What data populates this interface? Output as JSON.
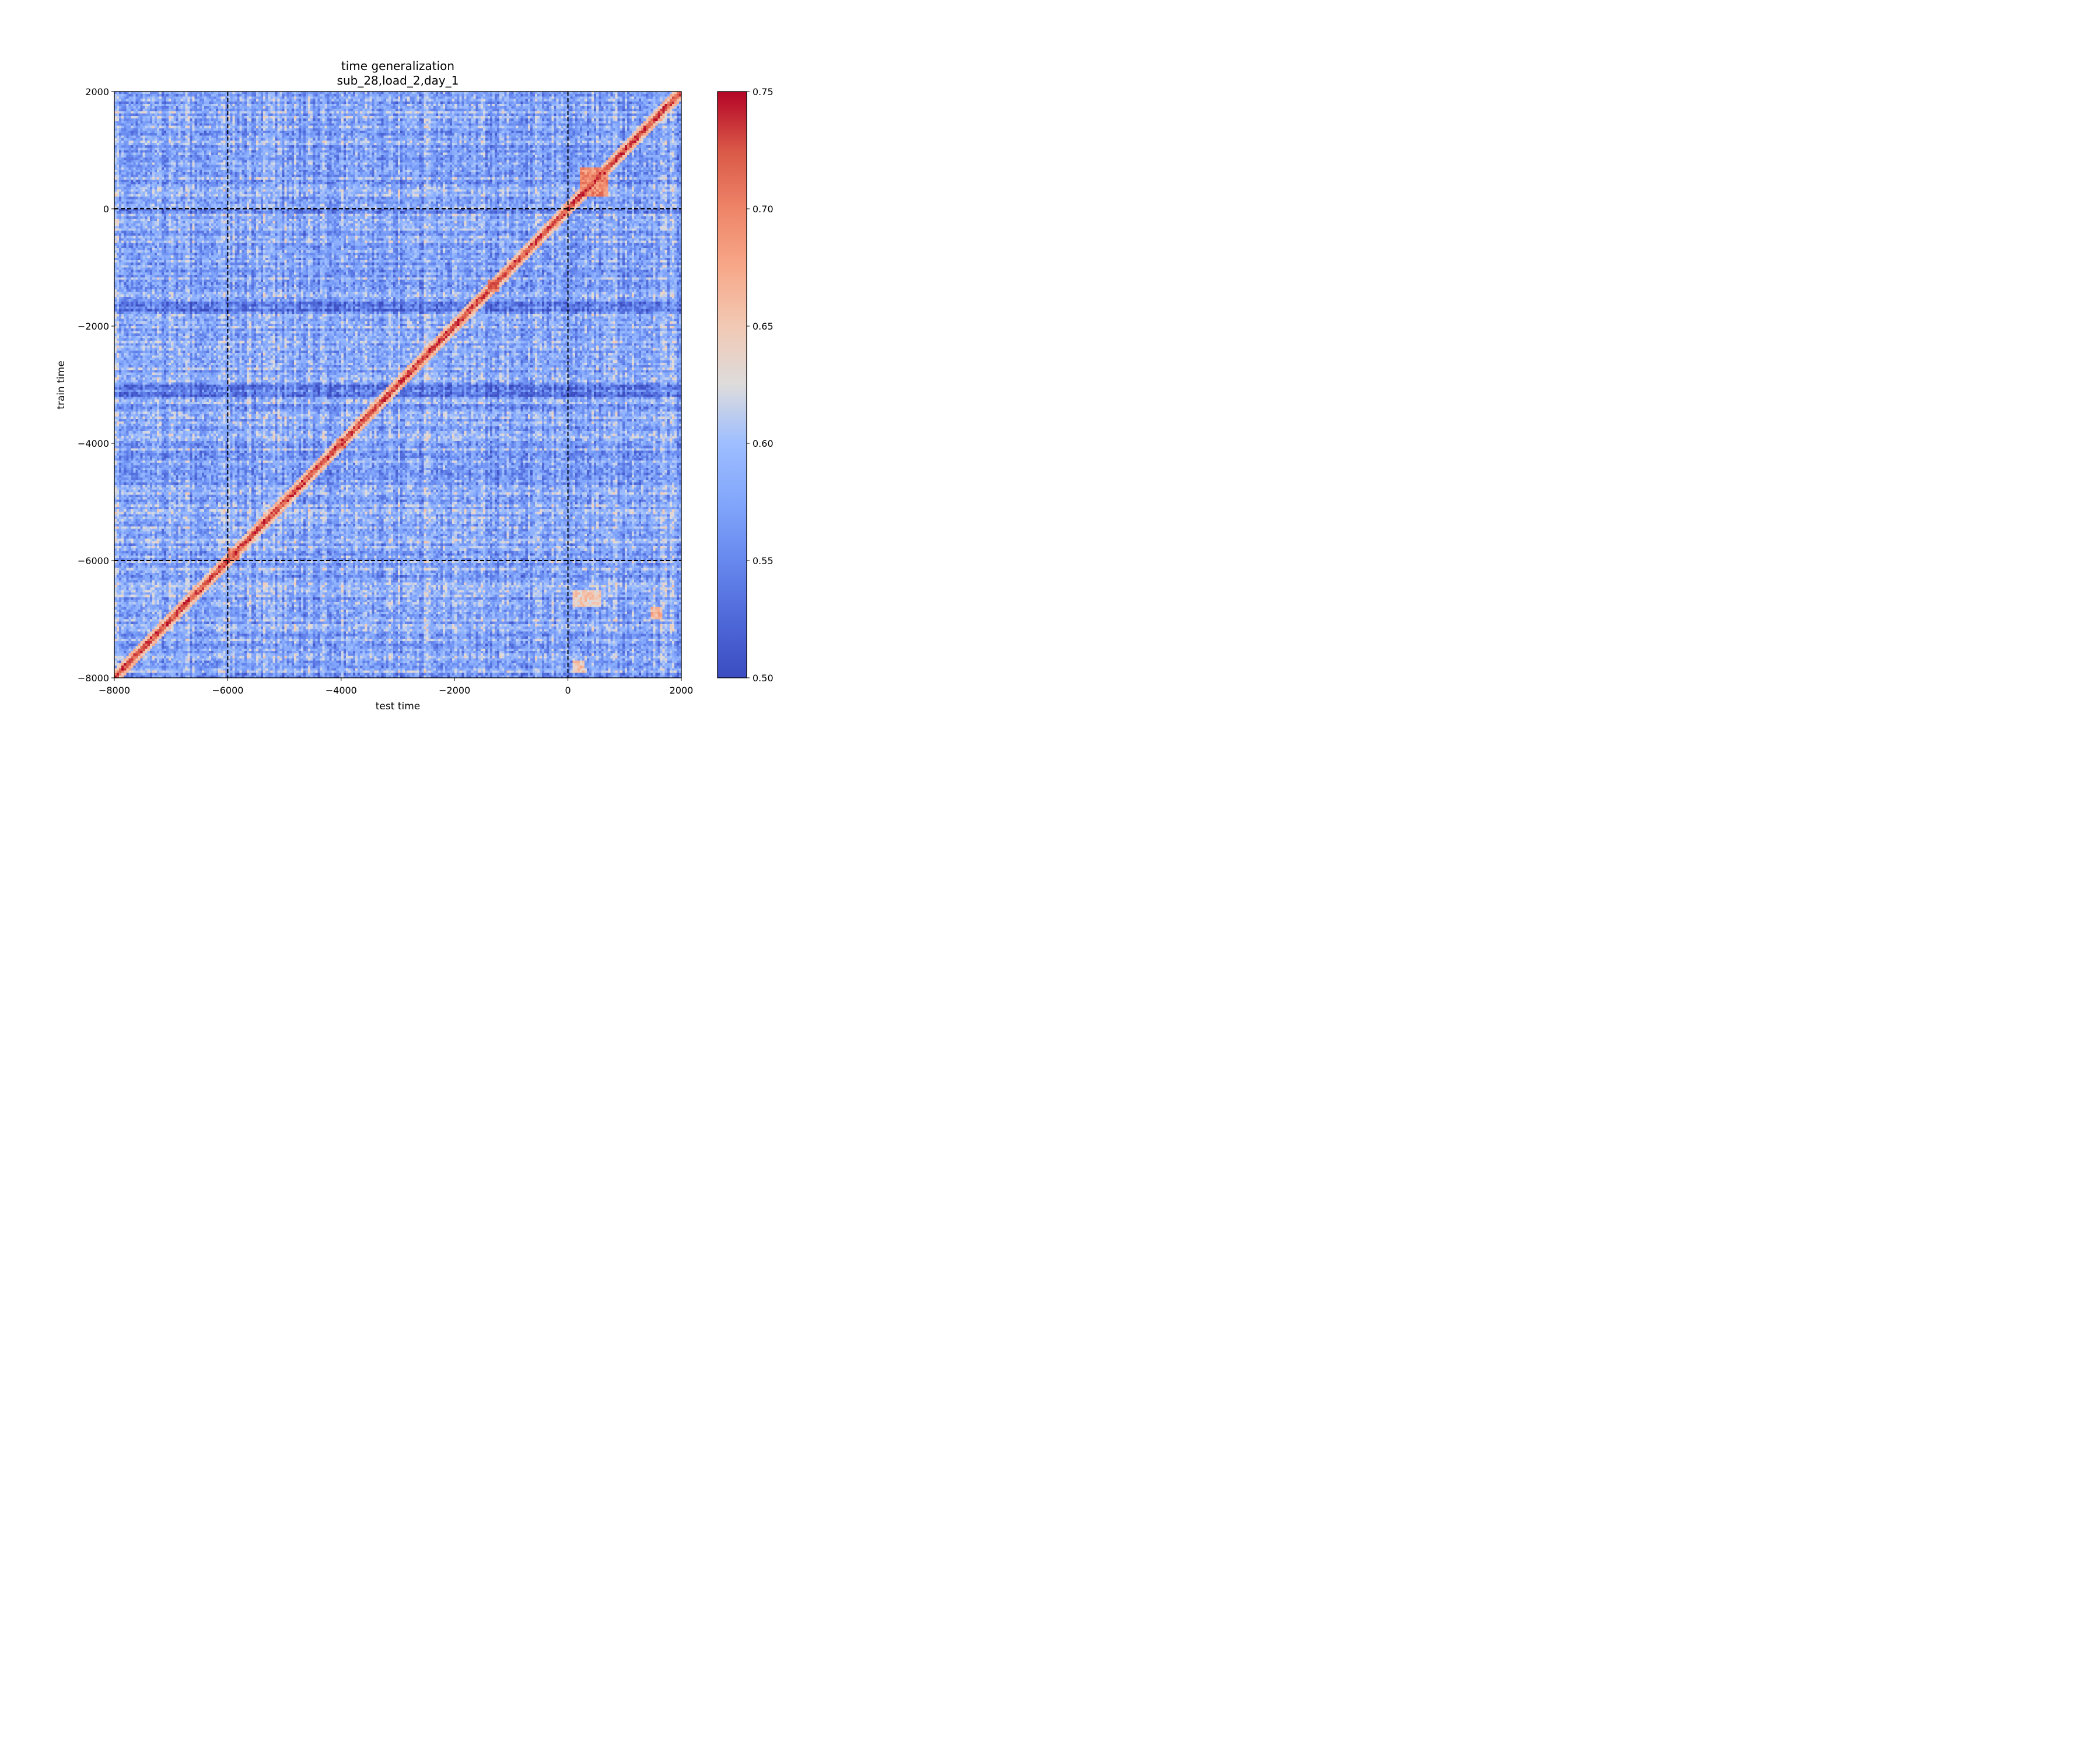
{
  "chart_data": {
    "type": "heatmap",
    "title": "time generalization",
    "subtitle": "sub_28,load_2,day_1",
    "xlabel": "test time",
    "ylabel": "train time",
    "xlim": [
      -8000,
      2000
    ],
    "ylim": [
      -8000,
      2000
    ],
    "x_ticks": [
      -8000,
      -6000,
      -4000,
      -2000,
      0,
      2000
    ],
    "y_ticks": [
      -8000,
      -6000,
      -4000,
      -2000,
      0,
      2000
    ],
    "x_tick_labels": [
      "−8000",
      "−6000",
      "−4000",
      "−2000",
      "0",
      "2000"
    ],
    "y_tick_labels": [
      "−8000",
      "−6000",
      "−4000",
      "−2000",
      "0",
      "2000"
    ],
    "colormap": "coolwarm",
    "color_range": [
      0.5,
      0.75
    ],
    "colorbar_ticks": [
      0.5,
      0.55,
      0.6,
      0.65,
      0.7,
      0.75
    ],
    "colorbar_tick_labels": [
      "0.50",
      "0.55",
      "0.60",
      "0.65",
      "0.70",
      "0.75"
    ],
    "reference_lines": {
      "style": "dashed",
      "color": "#000000",
      "vertical_x": [
        -6000,
        0
      ],
      "horizontal_y": [
        -6000,
        0
      ]
    },
    "features": {
      "diagonal_peak_value": 0.75,
      "background_value_range": [
        0.5,
        0.64
      ],
      "high_regions": [
        {
          "x": [
            200,
            700
          ],
          "y": [
            200,
            700
          ],
          "value": 0.72
        },
        {
          "x": [
            -4100,
            -3900
          ],
          "y": [
            -4100,
            -3900
          ],
          "value": 0.74
        },
        {
          "x": [
            -6000,
            -5800
          ],
          "y": [
            -6000,
            -5800
          ],
          "value": 0.73
        },
        {
          "x": [
            -1400,
            -1200
          ],
          "y": [
            -1400,
            -1200
          ],
          "value": 0.73
        },
        {
          "x": [
            100,
            300
          ],
          "y": [
            -7900,
            -7700
          ],
          "value": 0.68
        },
        {
          "x": [
            100,
            600
          ],
          "y": [
            -6800,
            -6500
          ],
          "value": 0.67
        },
        {
          "x": [
            1450,
            1650
          ],
          "y": [
            -7000,
            -6800
          ],
          "value": 0.69
        }
      ],
      "low_bands_train_time": [
        [
          -100,
          0
        ],
        [
          -1800,
          -1600
        ],
        [
          -3200,
          -3000
        ]
      ]
    },
    "grid": false,
    "legend": "none"
  }
}
